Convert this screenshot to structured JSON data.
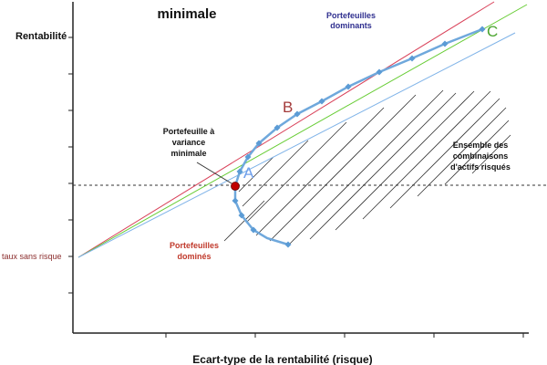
{
  "diagram": {
    "title_fragment": "minimale",
    "y_axis_label": "Rentabilité",
    "x_axis_label": "Ecart-type de la rentabilité (risque)",
    "risk_free_label": "taux sans risque",
    "dominant_label": [
      "Portefeuilles",
      "dominants"
    ],
    "dominated_label": [
      "Portefeuilles",
      "dominés"
    ],
    "min_variance_label": [
      "Portefeuille à",
      "variance",
      "minimale"
    ],
    "set_label": [
      "Ensemble des",
      "combinaisons",
      "d'actifs risqués"
    ],
    "point_labels": {
      "a": "A",
      "b": "B",
      "c": "C"
    },
    "colors": {
      "frontier": "#6fa8dc",
      "marker": "#5b9bd5",
      "min_variance_point": "#c00000",
      "red_line": "#d9425a",
      "green_line": "#66cc33",
      "blue_line": "#7fb3e8",
      "label_a": "#6d9eeb",
      "label_b": "#a33a3a",
      "label_c": "#4aa52e",
      "dominant_text": "#2f2f8f",
      "dominated_text": "#c0392b",
      "risk_free_text": "#8b2d2d"
    }
  }
}
